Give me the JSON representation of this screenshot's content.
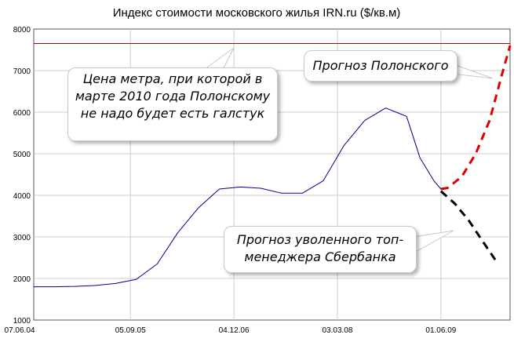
{
  "chart_data": {
    "type": "line",
    "title": "Индекс стоимости московского жилья IRN.ru ($/кв.м)",
    "xlabel": "",
    "ylabel": "",
    "xlim": [
      "2004-07-07",
      "2010-04-01"
    ],
    "ylim": [
      1000,
      8000
    ],
    "y_ticks": [
      1000,
      2000,
      3000,
      4000,
      5000,
      6000,
      7000,
      8000
    ],
    "x_ticks": [
      {
        "date": "2004-07-07",
        "label": "07.06.04"
      },
      {
        "date": "2005-09-05",
        "label": "05.09.05"
      },
      {
        "date": "2006-12-04",
        "label": "04.12.06"
      },
      {
        "date": "2008-03-03",
        "label": "03.03.08"
      },
      {
        "date": "2009-06-01",
        "label": "01.06.09"
      }
    ],
    "grid": true,
    "series": [
      {
        "name": "",
        "color": "#00008b",
        "style": "solid",
        "points": [
          [
            "2004-07-07",
            1800
          ],
          [
            "2004-10-01",
            1800
          ],
          [
            "2005-01-01",
            1810
          ],
          [
            "2005-04-01",
            1830
          ],
          [
            "2005-07-01",
            1880
          ],
          [
            "2005-10-01",
            1980
          ],
          [
            "2006-01-01",
            2350
          ],
          [
            "2006-04-01",
            3100
          ],
          [
            "2006-07-01",
            3700
          ],
          [
            "2006-10-01",
            4150
          ],
          [
            "2007-01-01",
            4200
          ],
          [
            "2007-04-01",
            4170
          ],
          [
            "2007-07-01",
            4050
          ],
          [
            "2007-10-01",
            4050
          ],
          [
            "2008-01-01",
            4350
          ],
          [
            "2008-04-01",
            5200
          ],
          [
            "2008-07-01",
            5800
          ],
          [
            "2008-10-01",
            6100
          ],
          [
            "2009-01-01",
            5900
          ],
          [
            "2009-03-01",
            4900
          ],
          [
            "2009-05-01",
            4350
          ],
          [
            "2009-06-01",
            4150
          ]
        ]
      },
      {
        "name": "Прогноз Полонского",
        "color": "#e00000",
        "style": "dashed",
        "points": [
          [
            "2009-06-01",
            4150
          ],
          [
            "2009-07-01",
            4180
          ],
          [
            "2009-09-01",
            4450
          ],
          [
            "2009-11-01",
            5000
          ],
          [
            "2010-01-01",
            5800
          ],
          [
            "2010-03-01",
            7000
          ],
          [
            "2010-04-01",
            7600
          ]
        ]
      },
      {
        "name": "Прогноз уволенного топ-менеджера Сбербанка",
        "color": "#000000",
        "style": "dashed",
        "points": [
          [
            "2009-06-01",
            4100
          ],
          [
            "2009-08-01",
            3800
          ],
          [
            "2009-10-01",
            3400
          ],
          [
            "2009-12-01",
            2900
          ],
          [
            "2010-02-01",
            2400
          ]
        ]
      }
    ],
    "reference_lines": [
      {
        "y": 7650,
        "color": "#b00000"
      }
    ],
    "annotations": [
      {
        "id": "tie",
        "text": "Цена метра, при которой в марте 2010 года Полонскому не надо будет есть галстук",
        "color": "#e00000"
      },
      {
        "id": "polonsky",
        "text": "Прогноз Полонского",
        "color": "#e00000"
      },
      {
        "id": "sber",
        "text": "Прогноз уволенного топ-менеджера Сбербанка",
        "color": "#000000"
      }
    ]
  }
}
